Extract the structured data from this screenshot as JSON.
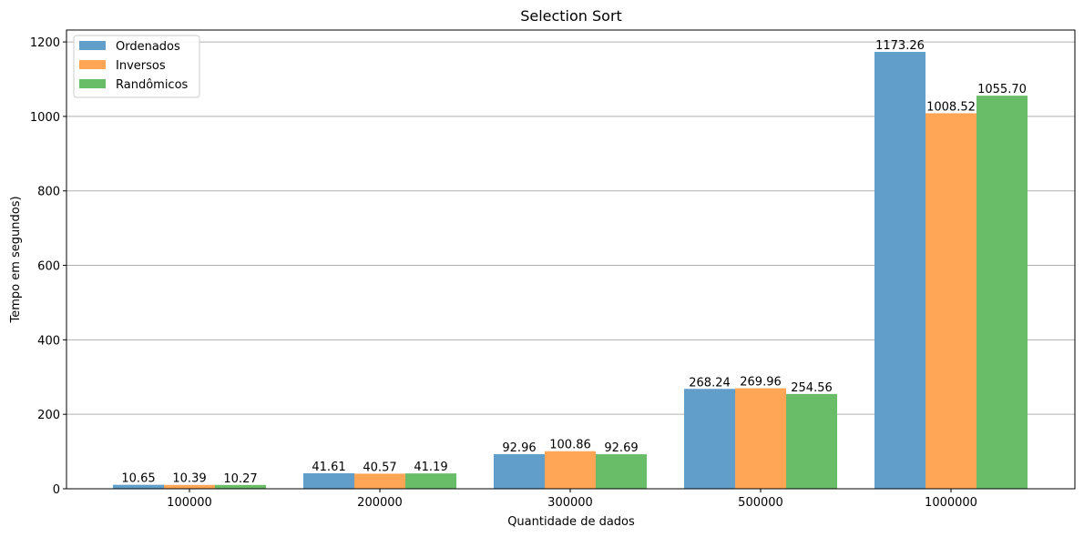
{
  "chart_data": {
    "type": "bar",
    "title": "Selection Sort",
    "xlabel": "Quantidade de dados",
    "ylabel": "Tempo em segundos)",
    "categories": [
      "100000",
      "200000",
      "300000",
      "500000",
      "1000000"
    ],
    "series": [
      {
        "name": "Ordenados",
        "color": "#619fca",
        "values": [
          10.65,
          41.61,
          92.96,
          268.24,
          1173.26
        ],
        "labels": [
          "10.65",
          "41.61",
          "92.96",
          "268.24",
          "1173.26"
        ]
      },
      {
        "name": "Inversos",
        "color": "#ffa556",
        "values": [
          10.39,
          40.57,
          100.86,
          269.96,
          1008.52
        ],
        "labels": [
          "10.39",
          "40.57",
          "100.86",
          "269.96",
          "1008.52"
        ]
      },
      {
        "name": "Randômicos",
        "color": "#6abd68",
        "values": [
          10.27,
          41.19,
          92.69,
          254.56,
          1055.7
        ],
        "labels": [
          "10.27",
          "41.19",
          "92.69",
          "254.56",
          "1055.70"
        ]
      }
    ],
    "ylim": [
      0,
      1232
    ],
    "yticks": [
      0,
      200,
      400,
      600,
      800,
      1000,
      1200
    ],
    "grid": "y",
    "legend_position": "top-left"
  }
}
